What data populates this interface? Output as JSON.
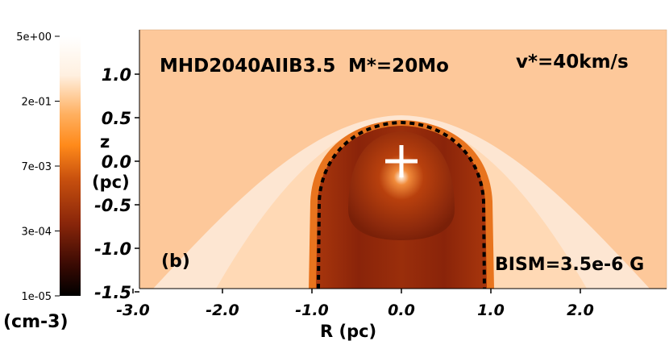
{
  "plot": {
    "run_label": "MHD2040AIIB3.5",
    "mass_label": "M*=20Mo",
    "velocity_label": "v*=40km/s",
    "panel_label": "(b)",
    "field_label": "BISM=3.5e-6 G"
  },
  "axes": {
    "xlabel": "R (pc)",
    "ylabel_line1": "z",
    "ylabel_line2": "(pc)",
    "xlim": [
      -3.0,
      3.0
    ],
    "ylim": [
      -1.5,
      1.5
    ],
    "x_ticks": [
      "-3.0",
      "-2.0",
      "-1.0",
      "0.0",
      "1.0",
      "2.0"
    ],
    "y_ticks": [
      "1.0",
      "0.5",
      "0.0",
      "-0.5",
      "-1.0",
      "-1.5"
    ]
  },
  "colorbar": {
    "unit": "(cm-3)",
    "ticks": [
      "5e+00",
      "2e-01",
      "7e-03",
      "3e-04",
      "1e-05"
    ],
    "scale": "log",
    "colors": [
      "#ffffff",
      "#ff8a1a",
      "#b83c0a",
      "#5a1205",
      "#000000"
    ]
  },
  "colors": {
    "ambient": "#fdc89a",
    "outer_shell": "#fde6d2",
    "inner_shell": "#ffd6a8",
    "hot_bubble": "#8e2a0c",
    "wind_cavity": "#b8400d",
    "marker": "#ffffff"
  },
  "marker": {
    "symbol": "+",
    "R": 0.0,
    "z": 0.0
  }
}
